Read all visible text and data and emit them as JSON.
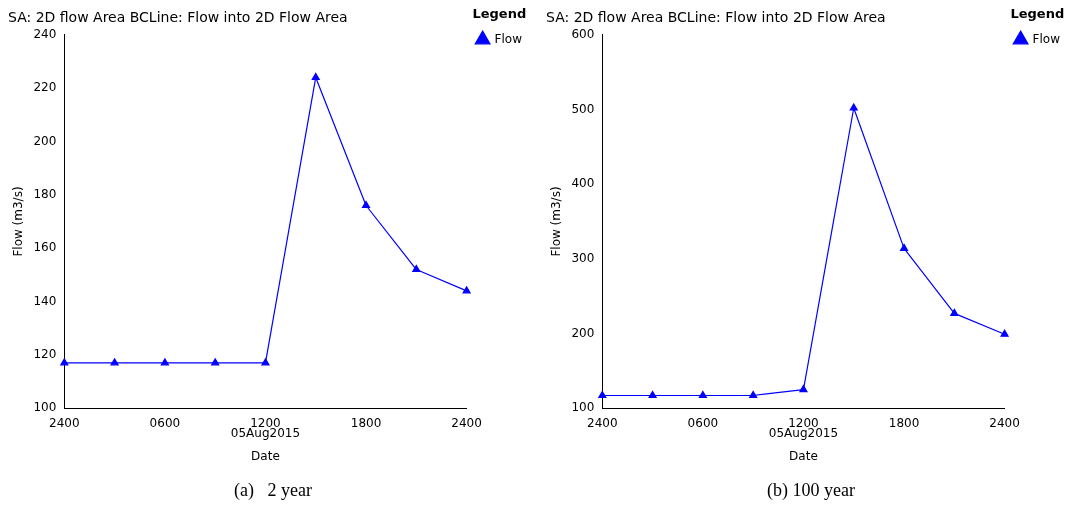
{
  "chart_data": [
    {
      "type": "line",
      "title": "SA: 2D flow Area BCLine: Flow into 2D Flow Area",
      "xlabel": "Date",
      "ylabel": "Flow (m3/s)",
      "legend_title": "Legend",
      "legend": "top right",
      "marker": "triangle",
      "line_style": "solid",
      "grid": false,
      "categories": [
        "2400",
        null,
        "0600",
        null,
        "1200",
        null,
        "1800",
        null,
        "2400"
      ],
      "series": [
        {
          "name": "Flow",
          "color": "#0000ff",
          "values": [
            117,
            117,
            117,
            117,
            117,
            224,
            176,
            152,
            144
          ]
        }
      ],
      "ylim": [
        100,
        240
      ],
      "yticks": [
        100,
        120,
        140,
        160,
        180,
        200,
        220,
        240
      ],
      "annotations": [
        "05Aug2015",
        "(a)   2 year"
      ]
    },
    {
      "type": "line",
      "title": "SA: 2D flow Area BCLine: Flow into 2D Flow Area",
      "xlabel": "Date",
      "ylabel": "Flow (m3/s)",
      "legend_title": "Legend",
      "legend": "top right",
      "marker": "triangle",
      "line_style": "solid",
      "grid": false,
      "categories": [
        "2400",
        null,
        "0600",
        null,
        "1200",
        null,
        "1800",
        null,
        "2400"
      ],
      "series": [
        {
          "name": "Flow",
          "color": "#0000ff",
          "values": [
            117,
            117,
            117,
            117,
            125,
            502,
            314,
            227,
            199
          ]
        }
      ],
      "ylim": [
        100,
        600
      ],
      "yticks": [
        100,
        200,
        300,
        400,
        500,
        600
      ],
      "annotations": [
        "05Aug2015",
        "(b) 100 year"
      ]
    }
  ]
}
